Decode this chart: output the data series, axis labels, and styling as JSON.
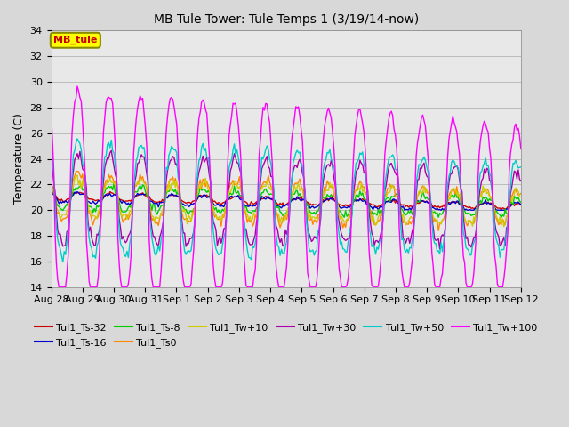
{
  "title": "MB Tule Tower: Tule Temps 1 (3/19/14-now)",
  "ylabel": "Temperature (C)",
  "ylim": [
    14,
    34
  ],
  "yticks": [
    14,
    16,
    18,
    20,
    22,
    24,
    26,
    28,
    30,
    32,
    34
  ],
  "xlabel_dates": [
    "Aug 28",
    "Aug 29",
    "Aug 30",
    "Aug 31",
    "Sep 1",
    "Sep 2",
    "Sep 3",
    "Sep 4",
    "Sep 5",
    "Sep 6",
    "Sep 7",
    "Sep 8",
    "Sep 9",
    "Sep 10",
    "Sep 11",
    "Sep 12"
  ],
  "legend_box_label": "MB_tule",
  "legend_box_color": "#ffff00",
  "legend_box_border": "#888800",
  "legend_box_text_color": "#cc0000",
  "series": [
    {
      "label": "Tul1_Ts-32",
      "color": "#cc0000"
    },
    {
      "label": "Tul1_Ts-16",
      "color": "#0000cc"
    },
    {
      "label": "Tul1_Ts-8",
      "color": "#00cc00"
    },
    {
      "label": "Tul1_Ts0",
      "color": "#ff8800"
    },
    {
      "label": "Tul1_Tw+10",
      "color": "#cccc00"
    },
    {
      "label": "Tul1_Tw+30",
      "color": "#aa00aa"
    },
    {
      "label": "Tul1_Tw+50",
      "color": "#00cccc"
    },
    {
      "label": "Tul1_Tw+100",
      "color": "#ff00ff"
    }
  ],
  "bg_color": "#d8d8d8",
  "plot_bg_color": "#e8e8e8",
  "grid_color": "#bbbbbb"
}
